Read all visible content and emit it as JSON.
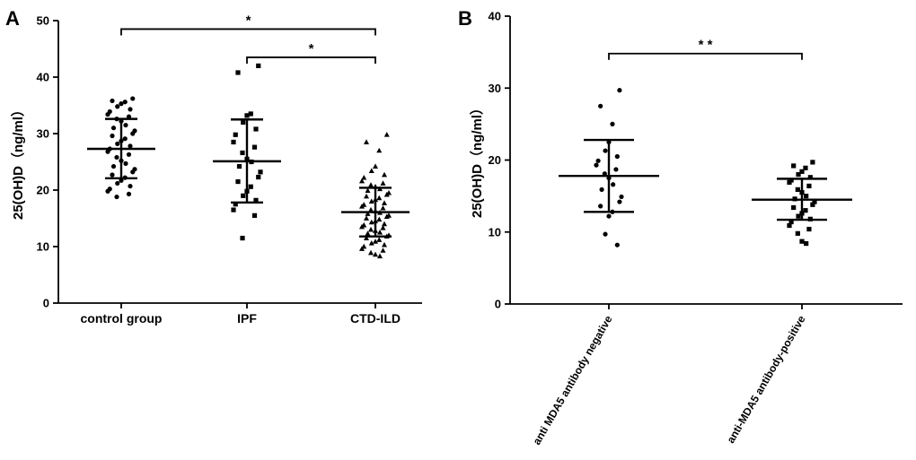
{
  "chart_data": [
    {
      "panel": "A",
      "type": "scatter",
      "ylabel": "25(OH)D（ng/ml）",
      "ylim": [
        0,
        50
      ],
      "yticks": [
        0,
        10,
        20,
        30,
        40,
        50
      ],
      "categories": [
        "control group",
        "IPF",
        "CTD-ILD"
      ],
      "groups": [
        {
          "name": "control group",
          "marker": "circle",
          "mean": 27.3,
          "sd_low": 22.1,
          "sd_high": 32.6,
          "values": [
            36.2,
            35.8,
            35.6,
            35.3,
            34.8,
            34.3,
            33.9,
            33.4,
            33.0,
            32.6,
            32.2,
            31.5,
            31.0,
            30.5,
            30.0,
            29.6,
            29.1,
            28.7,
            28.2,
            27.8,
            27.3,
            26.8,
            26.3,
            25.8,
            25.2,
            24.7,
            24.2,
            23.7,
            23.2,
            22.7,
            22.2,
            21.7,
            21.2,
            20.7,
            20.2,
            19.8,
            19.3,
            18.8
          ]
        },
        {
          "name": "IPF",
          "marker": "square",
          "mean": 25.1,
          "sd_low": 17.8,
          "sd_high": 32.5,
          "values": [
            42.0,
            40.8,
            33.5,
            33.2,
            32.0,
            30.8,
            29.8,
            28.5,
            27.6,
            26.6,
            25.5,
            25.0,
            24.2,
            23.2,
            22.3,
            21.5,
            20.6,
            19.8,
            19.0,
            18.2,
            17.5,
            16.5,
            15.5,
            11.5
          ]
        },
        {
          "name": "CTD-ILD",
          "marker": "triangle",
          "mean": 16.1,
          "sd_low": 11.8,
          "sd_high": 20.4,
          "values": [
            29.8,
            28.5,
            27.0,
            24.2,
            23.4,
            22.7,
            22.2,
            21.6,
            21.2,
            20.9,
            20.6,
            20.2,
            19.9,
            19.5,
            19.2,
            18.9,
            18.6,
            18.3,
            18.0,
            17.7,
            17.4,
            17.1,
            16.8,
            16.5,
            16.3,
            16.0,
            15.8,
            15.5,
            15.3,
            15.0,
            14.8,
            14.5,
            14.3,
            14.0,
            13.8,
            13.5,
            13.3,
            13.0,
            12.8,
            12.5,
            12.3,
            12.0,
            11.8,
            11.5,
            11.2,
            10.9,
            10.6,
            10.3,
            10.0,
            9.6,
            9.3,
            8.9,
            8.6,
            8.3
          ]
        }
      ],
      "significance": [
        {
          "from": 0,
          "to": 2,
          "y": 48.5,
          "label": "*"
        },
        {
          "from": 1,
          "to": 2,
          "y": 43.5,
          "label": "*"
        }
      ]
    },
    {
      "panel": "B",
      "type": "scatter",
      "ylabel": "25(OH)D（ng/ml）",
      "ylim": [
        0,
        40
      ],
      "yticks": [
        0,
        10,
        20,
        30,
        40
      ],
      "categories": [
        "anti MDA5 antibody negative",
        "anti-MDA5 antibody-positive"
      ],
      "groups": [
        {
          "name": "anti MDA5 antibody negative",
          "marker": "circle",
          "mean": 17.8,
          "sd_low": 12.8,
          "sd_high": 22.8,
          "values": [
            29.7,
            27.5,
            25.0,
            22.5,
            21.3,
            20.5,
            19.9,
            19.3,
            18.7,
            18.1,
            17.5,
            16.6,
            15.9,
            14.9,
            14.2,
            13.6,
            12.8,
            12.2,
            9.7,
            8.2
          ]
        },
        {
          "name": "anti-MDA5 antibody-positive",
          "marker": "square",
          "mean": 14.5,
          "sd_low": 11.7,
          "sd_high": 17.4,
          "values": [
            19.7,
            19.2,
            18.9,
            18.4,
            18.0,
            17.6,
            17.2,
            16.9,
            16.4,
            15.9,
            15.5,
            15.0,
            14.6,
            14.2,
            13.8,
            13.4,
            13.0,
            12.6,
            12.2,
            11.8,
            11.4,
            10.9,
            10.4,
            9.8,
            8.7,
            8.4
          ]
        }
      ],
      "significance": [
        {
          "from": 0,
          "to": 1,
          "y": 34.8,
          "label": "* *"
        }
      ]
    }
  ]
}
